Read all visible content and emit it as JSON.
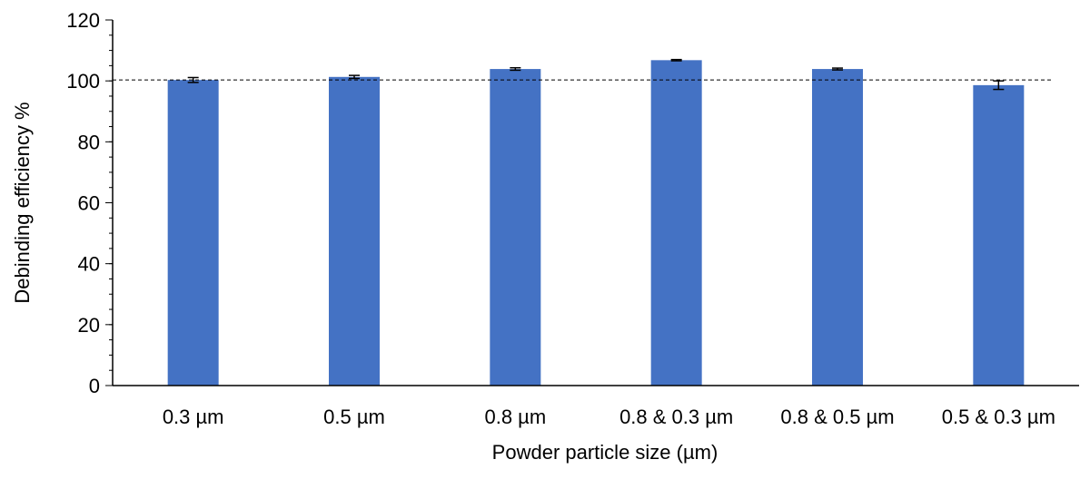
{
  "chart_data": {
    "type": "bar",
    "title": "",
    "xlabel": "Powder particle size (µm)",
    "ylabel": "Debinding efficiency %",
    "categories": [
      "0.3 µm",
      "0.5 µm",
      "0.8 µm",
      "0.8 & 0.3 µm",
      "0.8 & 0.5 µm",
      "0.5 & 0.3 µm"
    ],
    "values": [
      100.3,
      101.3,
      103.9,
      106.8,
      103.9,
      98.6
    ],
    "error": [
      0.8,
      0.5,
      0.4,
      0.2,
      0.3,
      1.4
    ],
    "ylim": [
      0,
      120
    ],
    "yticks": [
      0,
      20,
      40,
      60,
      80,
      100,
      120
    ],
    "reference_line": 100.3,
    "reference_line_style": "dashed",
    "legend": "none",
    "grid": false,
    "bar_color": "#4472C4",
    "axis_color": "#000000"
  }
}
